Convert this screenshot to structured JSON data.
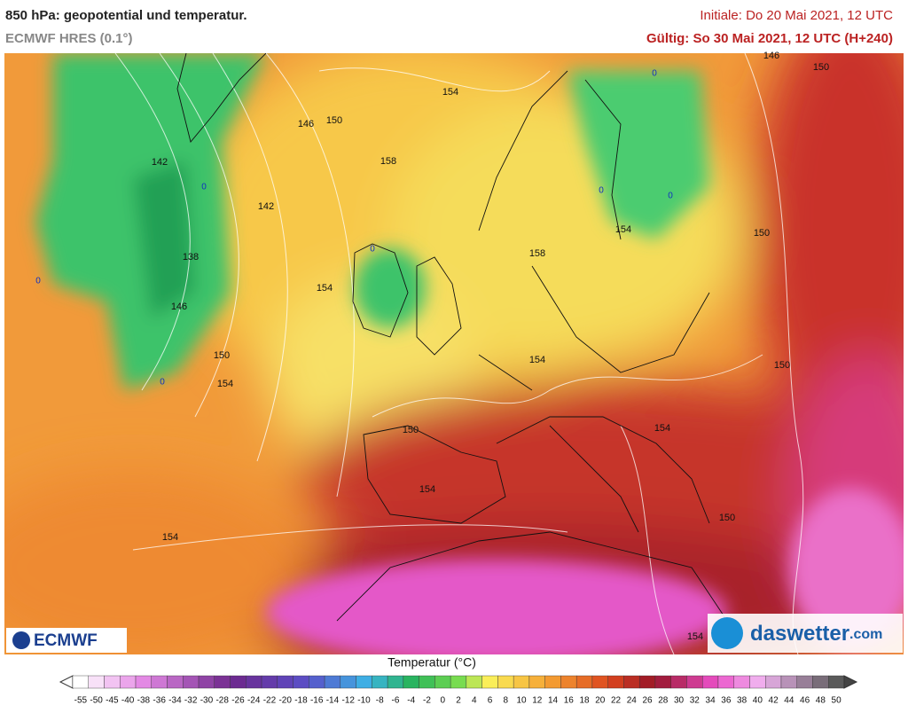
{
  "header": {
    "title": "850 hPa: geopotential und temperatur.",
    "subtitle": "ECMWF HRES (0.1°)",
    "initial": "Initiale: Do 20 Mai 2021, 12 UTC",
    "valid": "Gültig: So 30 Mai 2021, 12 UTC (H+240)"
  },
  "map": {
    "contour_labels": [
      154,
      150,
      146,
      146,
      150,
      158,
      142,
      142,
      138,
      146,
      154,
      158,
      154,
      150,
      150,
      154,
      154,
      150,
      150,
      154,
      154,
      150,
      154,
      154
    ],
    "isotherm_labels": [
      0,
      0,
      0,
      0,
      0,
      0,
      0
    ]
  },
  "logos": {
    "left": "ECMWF",
    "right": "daswetter",
    "right_suffix": ".com"
  },
  "colorbar": {
    "title": "Temperatur (°C)",
    "ticks": [
      -55,
      -50,
      -45,
      -40,
      -38,
      -36,
      -34,
      -32,
      -30,
      -28,
      -26,
      -24,
      -22,
      -20,
      -18,
      -16,
      -14,
      -12,
      -10,
      -8,
      -6,
      -4,
      -2,
      0,
      2,
      4,
      6,
      8,
      10,
      12,
      14,
      16,
      18,
      20,
      22,
      24,
      26,
      28,
      30,
      32,
      34,
      36,
      38,
      40,
      42,
      44,
      46,
      48,
      50
    ]
  }
}
